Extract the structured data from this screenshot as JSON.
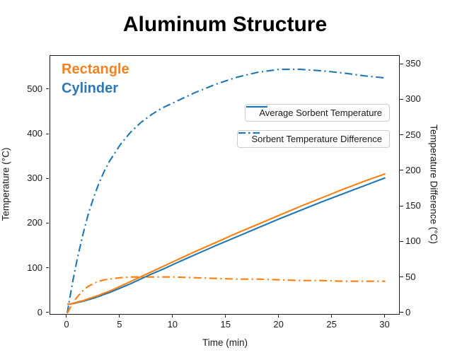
{
  "title": "Aluminum Structure",
  "annotations": {
    "rectangle": {
      "label": "Rectangle",
      "color": "#f58220"
    },
    "cylinder": {
      "label": "Cylinder",
      "color": "#2e78b8"
    }
  },
  "legend": {
    "items": [
      {
        "label": "Average Sorbent Temperature",
        "style": "solid",
        "color": "#1f77b4"
      },
      {
        "label": "Sorbent Temperature Difference",
        "style": "dashdot",
        "color": "#1f77b4"
      }
    ]
  },
  "colors": {
    "orange": "#ff7f0e",
    "blue": "#1f77b4",
    "axis": "#1a1a1a"
  },
  "chart_data": {
    "type": "line",
    "title": "Aluminum Structure",
    "xlabel": "Time (min)",
    "ylabel_left": "Temperature (°C)",
    "ylabel_right": "Temperature Difference (°C)",
    "grid": false,
    "legend_position": "center-right, two separate boxes",
    "xlim": [
      -1.6,
      31.3
    ],
    "ylim_left": [
      -2,
      576
    ],
    "ylim_right": [
      -1,
      362
    ],
    "xticks": [
      0,
      5,
      10,
      15,
      20,
      25,
      30
    ],
    "yticks_left": [
      0,
      100,
      200,
      300,
      400,
      500
    ],
    "yticks_right": [
      0,
      50,
      100,
      150,
      200,
      250,
      300,
      350
    ],
    "x": [
      0,
      0.25,
      0.5,
      0.75,
      1,
      1.5,
      2,
      2.5,
      3,
      3.5,
      4,
      5,
      6,
      7,
      8,
      9,
      10,
      12,
      14,
      16,
      18,
      20,
      22,
      24,
      26,
      28,
      30
    ],
    "series": [
      {
        "id": "cylinder-temperature-difference",
        "name": "Cylinder - Sorbent Temperature Difference",
        "axis": "right",
        "style": "dashdot",
        "color": "#1f77b4",
        "values": [
          0,
          22,
          43,
          62,
          80,
          112,
          140,
          163,
          183,
          200,
          214,
          237,
          255,
          269,
          280,
          289,
          296,
          310,
          322,
          332,
          339,
          343,
          343,
          341,
          338,
          334,
          331
        ]
      },
      {
        "id": "rectangle-temperature-difference",
        "name": "Rectangle - Sorbent Temperature Difference",
        "axis": "right",
        "style": "dashdot",
        "color": "#ff7f0e",
        "values": [
          0,
          7,
          13,
          19,
          24,
          32,
          38,
          42,
          45,
          47,
          48,
          50,
          51,
          51,
          51,
          51,
          51,
          50,
          49,
          48,
          48,
          47,
          46,
          46,
          45,
          45,
          45
        ]
      },
      {
        "id": "cylinder-average-temperature",
        "name": "Cylinder - Average Sorbent Temperature",
        "axis": "left",
        "style": "solid",
        "color": "#1f77b4",
        "values": [
          20,
          20.3,
          21,
          22.3,
          24,
          26.5,
          30,
          33.5,
          37.5,
          42,
          46,
          56,
          66,
          77,
          88,
          98,
          109,
          130,
          151,
          171,
          191,
          211,
          230,
          249,
          267,
          285,
          303
        ]
      },
      {
        "id": "rectangle-average-temperature",
        "name": "Rectangle - Average Sorbent Temperature",
        "axis": "left",
        "style": "solid",
        "color": "#ff7f0e",
        "values": [
          20,
          20.5,
          21.5,
          23,
          25,
          28,
          32,
          36,
          40,
          45,
          49,
          60,
          71,
          82,
          93,
          104,
          115,
          137,
          158,
          179,
          199,
          219,
          239,
          258,
          277,
          295,
          312
        ]
      }
    ]
  }
}
